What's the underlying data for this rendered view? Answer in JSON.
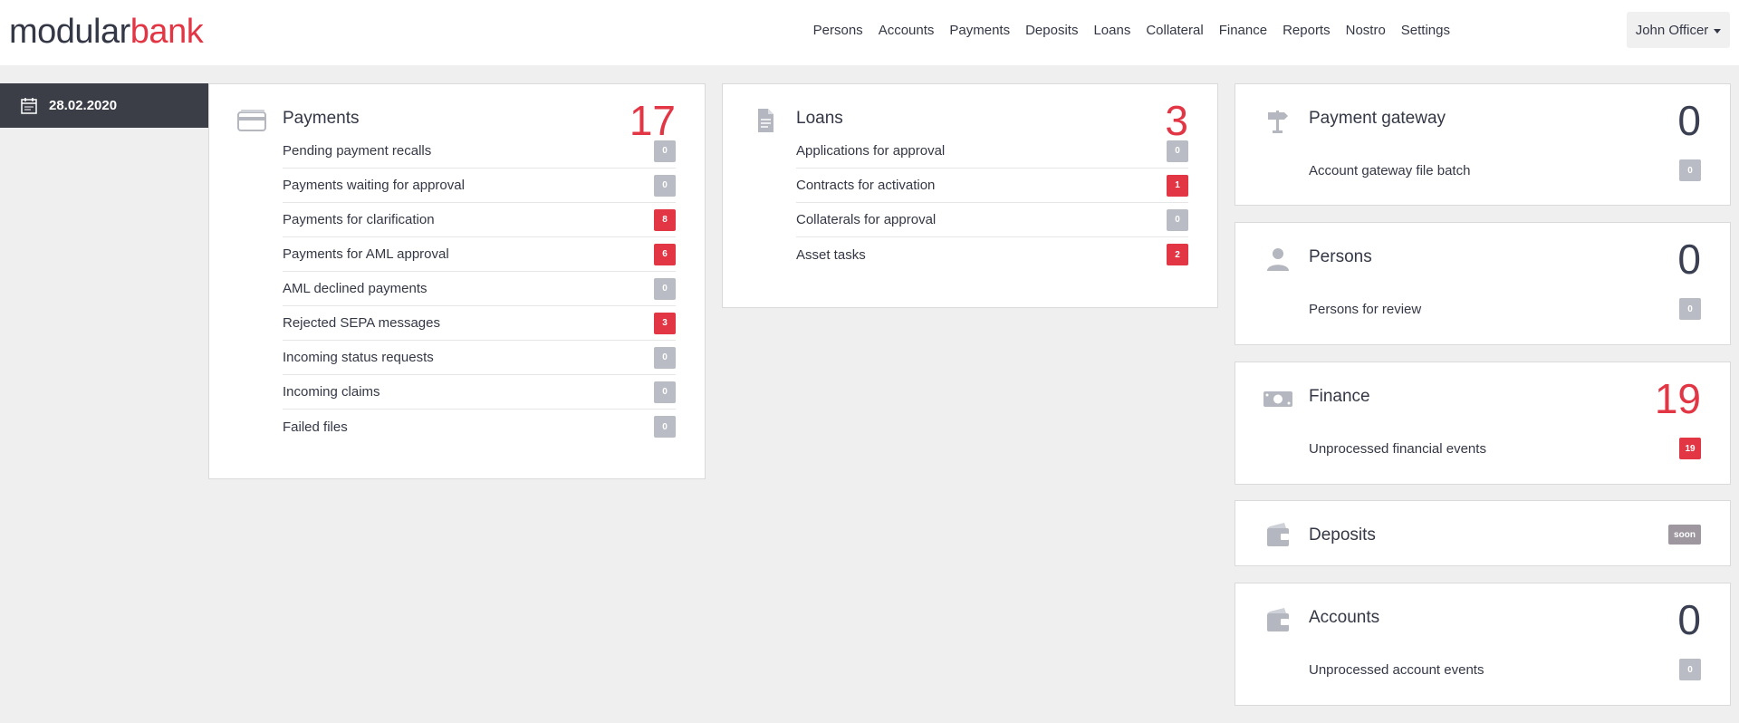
{
  "logo": {
    "part1": "modular",
    "part2": "bank"
  },
  "nav": [
    "Persons",
    "Accounts",
    "Payments",
    "Deposits",
    "Loans",
    "Collateral",
    "Finance",
    "Reports",
    "Nostro",
    "Settings"
  ],
  "user": {
    "name": "John Officer"
  },
  "date": "28.02.2020",
  "payments": {
    "title": "Payments",
    "count": "17",
    "rows": [
      {
        "label": "Pending payment recalls",
        "value": "0",
        "status": "grey"
      },
      {
        "label": "Payments waiting for approval",
        "value": "0",
        "status": "grey"
      },
      {
        "label": "Payments for clarification",
        "value": "8",
        "status": "red"
      },
      {
        "label": "Payments for AML approval",
        "value": "6",
        "status": "red"
      },
      {
        "label": "AML declined payments",
        "value": "0",
        "status": "grey"
      },
      {
        "label": "Rejected SEPA messages",
        "value": "3",
        "status": "red"
      },
      {
        "label": "Incoming status requests",
        "value": "0",
        "status": "grey"
      },
      {
        "label": "Incoming claims",
        "value": "0",
        "status": "grey"
      },
      {
        "label": "Failed files",
        "value": "0",
        "status": "grey"
      }
    ]
  },
  "loans": {
    "title": "Loans",
    "count": "3",
    "rows": [
      {
        "label": "Applications for approval",
        "value": "0",
        "status": "grey"
      },
      {
        "label": "Contracts for activation",
        "value": "1",
        "status": "red"
      },
      {
        "label": "Collaterals for approval",
        "value": "0",
        "status": "grey"
      },
      {
        "label": "Asset tasks",
        "value": "2",
        "status": "red"
      }
    ]
  },
  "gateway": {
    "title": "Payment gateway",
    "count": "0",
    "rows": [
      {
        "label": "Account gateway file batch",
        "value": "0",
        "status": "grey"
      }
    ]
  },
  "persons": {
    "title": "Persons",
    "count": "0",
    "rows": [
      {
        "label": "Persons for review",
        "value": "0",
        "status": "grey"
      }
    ]
  },
  "finance": {
    "title": "Finance",
    "count": "19",
    "rows": [
      {
        "label": "Unprocessed financial events",
        "value": "19",
        "status": "red"
      }
    ]
  },
  "deposits": {
    "title": "Deposits",
    "badge": "soon"
  },
  "accounts": {
    "title": "Accounts",
    "count": "0",
    "rows": [
      {
        "label": "Unprocessed account events",
        "value": "0",
        "status": "grey"
      }
    ]
  },
  "colors": {
    "accent": "#e23645",
    "dark": "#343746",
    "badge_grey": "#b9bcc5",
    "datebar": "#3b3e47"
  },
  "icons": {
    "payments": "credit-card-icon",
    "loans": "document-icon",
    "gateway": "signpost-icon",
    "persons": "person-icon",
    "finance": "banknote-icon",
    "deposits": "wallet-icon",
    "accounts": "wallet-icon",
    "date": "calendar-icon"
  }
}
